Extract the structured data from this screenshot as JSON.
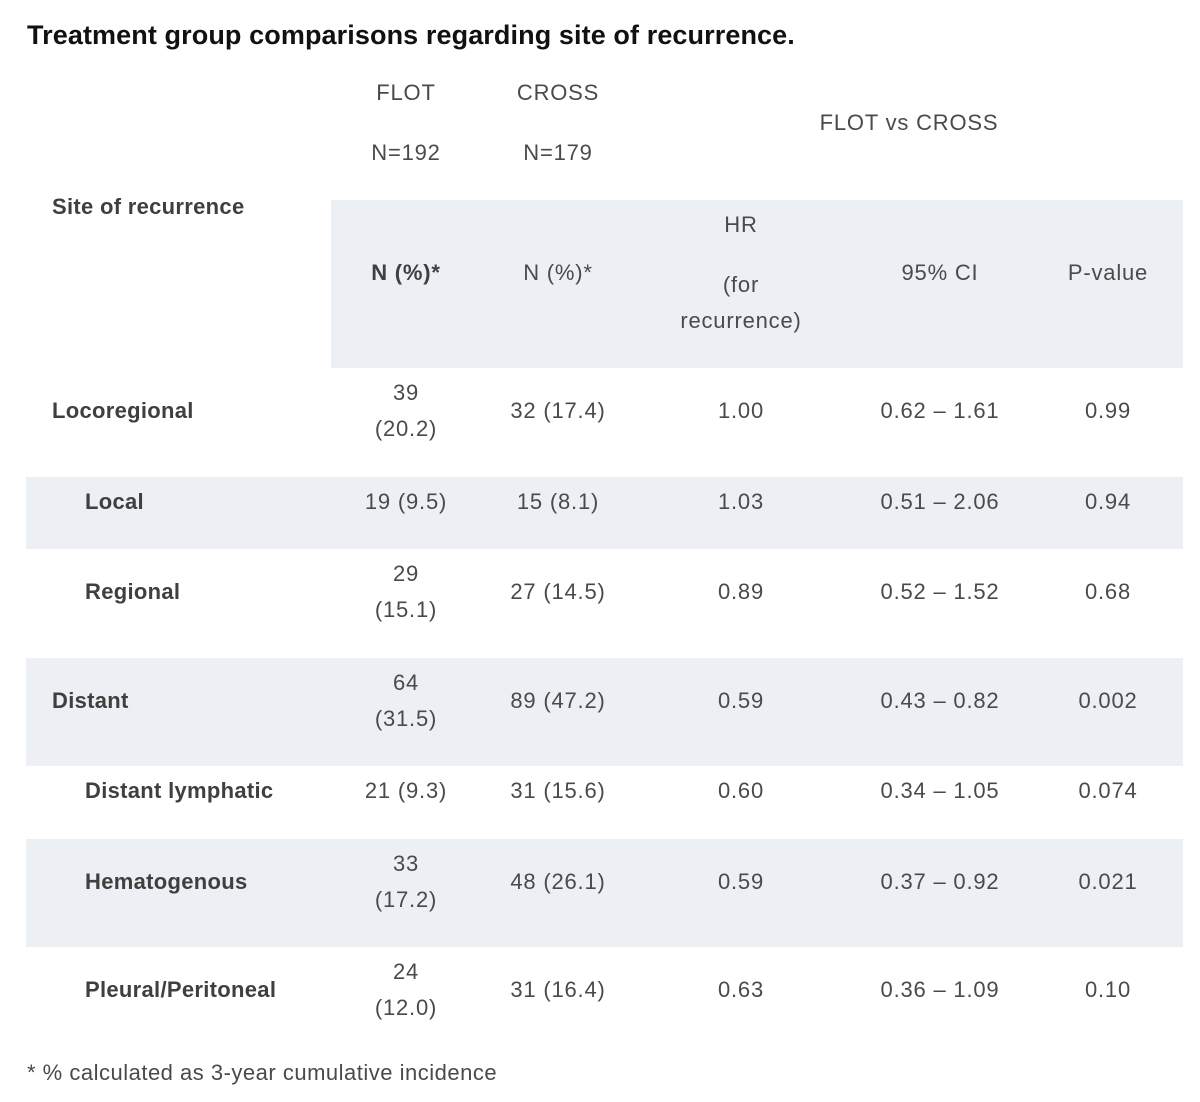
{
  "title": "Treatment group comparisons regarding site of recurrence.",
  "header": {
    "flot_label": "FLOT",
    "flot_n": "N=192",
    "cross_label": "CROSS",
    "cross_n": "N=179",
    "comparison_label": "FLOT vs CROSS",
    "site_label": "Site of recurrence",
    "col_flot": "N (%)*",
    "col_cross": "N (%)*",
    "col_hr_line1": "HR",
    "col_hr_line2": "(for",
    "col_hr_line3": "recurrence)",
    "col_ci": "95% CI",
    "col_p": "P-value"
  },
  "rows": [
    {
      "site": "Locoregional",
      "flot_l1": "39",
      "flot_l2": "(20.2)",
      "cross": "32 (17.4)",
      "hr": "1.00",
      "ci": "0.62 – 1.61",
      "p": "0.99"
    },
    {
      "site": "Local",
      "flot_l1": "19 (9.5)",
      "flot_l2": "",
      "cross": "15 (8.1)",
      "hr": "1.03",
      "ci": "0.51 – 2.06",
      "p": "0.94"
    },
    {
      "site": "Regional",
      "flot_l1": "29",
      "flot_l2": "(15.1)",
      "cross": "27 (14.5)",
      "hr": "0.89",
      "ci": "0.52 – 1.52",
      "p": "0.68"
    },
    {
      "site": "Distant",
      "flot_l1": "64",
      "flot_l2": "(31.5)",
      "cross": "89 (47.2)",
      "hr": "0.59",
      "ci": "0.43 – 0.82",
      "p": "0.002"
    },
    {
      "site": "Distant lymphatic",
      "flot_l1": "21 (9.3)",
      "flot_l2": "",
      "cross": "31 (15.6)",
      "hr": "0.60",
      "ci": "0.34 – 1.05",
      "p": "0.074"
    },
    {
      "site": "Hematogenous",
      "flot_l1": "33",
      "flot_l2": "(17.2)",
      "cross": "48 (26.1)",
      "hr": "0.59",
      "ci": "0.37 – 0.92",
      "p": "0.021"
    },
    {
      "site": "Pleural/Peritoneal",
      "flot_l1": "24",
      "flot_l2": "(12.0)",
      "cross": "31 (16.4)",
      "hr": "0.63",
      "ci": "0.36 – 1.09",
      "p": "0.10"
    }
  ],
  "footnote": "* % calculated as 3-year cumulative incidence"
}
